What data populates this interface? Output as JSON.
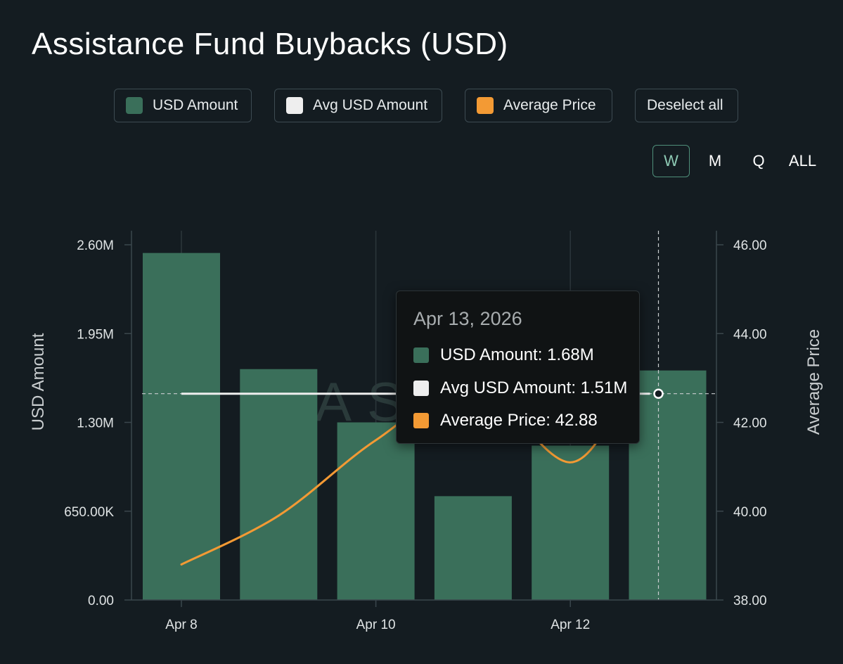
{
  "title": "Assistance Fund Buybacks (USD)",
  "legend": [
    {
      "label": "USD Amount",
      "color": "#3a6f5a"
    },
    {
      "label": "Avg USD Amount",
      "color": "#eeeeee"
    },
    {
      "label": "Average Price",
      "color": "#f39a34"
    }
  ],
  "deselect_label": "Deselect all",
  "ranges": [
    "W",
    "M",
    "Q",
    "ALL"
  ],
  "active_range": "W",
  "tooltip": {
    "date": "Apr 13, 2026",
    "rows": [
      {
        "label": "USD Amount: 1.68M",
        "color": "#3a6f5a"
      },
      {
        "label": "Avg USD Amount: 1.51M",
        "color": "#eeeeee"
      },
      {
        "label": "Average Price: 42.88",
        "color": "#f39a34"
      }
    ]
  },
  "watermark": "AS",
  "chart_data": {
    "type": "bar",
    "categories": [
      "Apr 8",
      "Apr 9",
      "Apr 10",
      "Apr 11",
      "Apr 12",
      "Apr 13"
    ],
    "x_tick_labels": [
      "Apr 8",
      "Apr 10",
      "Apr 12"
    ],
    "series": [
      {
        "name": "USD Amount",
        "type": "bar",
        "axis": "left",
        "color": "#3a6f5a",
        "values": [
          2.54,
          1.69,
          1.3,
          0.76,
          1.13,
          1.68
        ]
      },
      {
        "name": "Avg USD Amount",
        "type": "line",
        "axis": "left",
        "color": "#eeeeee",
        "values": [
          1.51,
          1.51,
          1.51,
          1.51,
          1.51,
          1.51
        ]
      },
      {
        "name": "Average Price",
        "type": "line",
        "axis": "right",
        "color": "#f39a34",
        "values": [
          38.8,
          39.9,
          41.6,
          42.8,
          41.1,
          42.88
        ]
      }
    ],
    "left_axis": {
      "label": "USD Amount",
      "ylim": [
        0,
        2.6
      ],
      "ticks": [
        0,
        0.65,
        1.3,
        1.95,
        2.6
      ],
      "tick_labels": [
        "0.00",
        "650.00K",
        "1.30M",
        "1.95M",
        "2.60M"
      ]
    },
    "right_axis": {
      "label": "Average Price",
      "ylim": [
        38,
        46
      ],
      "ticks": [
        38,
        40,
        42,
        44,
        46
      ],
      "tick_labels": [
        "38.00",
        "40.00",
        "42.00",
        "44.00",
        "46.00"
      ]
    },
    "grid": "vertical"
  }
}
